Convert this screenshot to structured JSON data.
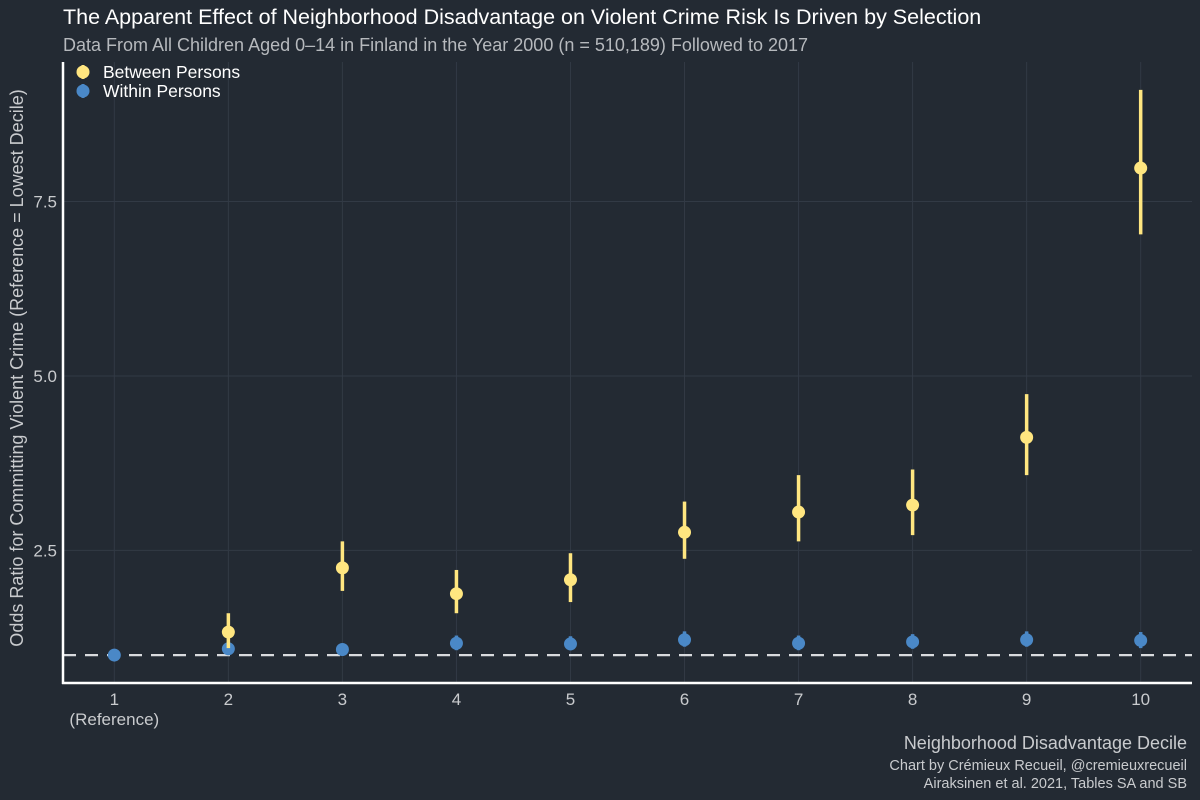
{
  "chart_data": {
    "type": "scatter",
    "title": "The Apparent Effect of Neighborhood Disadvantage on Violent Crime Risk Is Driven by Selection",
    "subtitle": "Data From All Children Aged 0–14 in Finland in the Year 2000 (n = 510,189) Followed to 2017",
    "xlabel": "Neighborhood Disadvantage Decile",
    "ylabel": "Odds Ratio for Committing Violent Crime (Reference = Lowest Decile)",
    "x_tick_labels": [
      "1",
      "2",
      "3",
      "4",
      "5",
      "6",
      "7",
      "8",
      "9",
      "10"
    ],
    "x_tick_sublabel": "(Reference)",
    "y_ticks": [
      2.5,
      5.0,
      7.5
    ],
    "y_tick_labels": [
      "2.5",
      "5.0",
      "7.5"
    ],
    "xlim": [
      0.55,
      10.45
    ],
    "ylim": [
      0.6,
      9.5
    ],
    "reference_line": 1.0,
    "grid": true,
    "legend_position": "top-left",
    "series": [
      {
        "name": "Between Persons",
        "color": "#ffe680",
        "x": [
          2,
          3,
          4,
          5,
          6,
          7,
          8,
          9,
          10
        ],
        "y": [
          1.33,
          2.25,
          1.88,
          2.08,
          2.76,
          3.05,
          3.15,
          4.12,
          7.98
        ],
        "lower": [
          1.1,
          1.92,
          1.6,
          1.76,
          2.38,
          2.63,
          2.72,
          3.58,
          7.03
        ],
        "upper": [
          1.6,
          2.63,
          2.22,
          2.46,
          3.2,
          3.58,
          3.66,
          4.74,
          9.1
        ]
      },
      {
        "name": "Within Persons",
        "color": "#4a88c7",
        "x": [
          1,
          2,
          3,
          4,
          5,
          6,
          7,
          8,
          9,
          10
        ],
        "y": [
          1.0,
          1.09,
          1.08,
          1.17,
          1.16,
          1.22,
          1.17,
          1.19,
          1.22,
          1.21
        ],
        "lower": [
          1.0,
          1.0,
          0.99,
          1.07,
          1.07,
          1.12,
          1.07,
          1.09,
          1.12,
          1.1
        ],
        "upper": [
          1.0,
          1.17,
          1.16,
          1.28,
          1.27,
          1.34,
          1.28,
          1.3,
          1.34,
          1.33
        ]
      }
    ]
  },
  "caption": {
    "line1": "Chart by Crémieux Recueil, @cremieuxrecueil",
    "line2": "Airaksinen et al. 2021, Tables SA and SB"
  }
}
